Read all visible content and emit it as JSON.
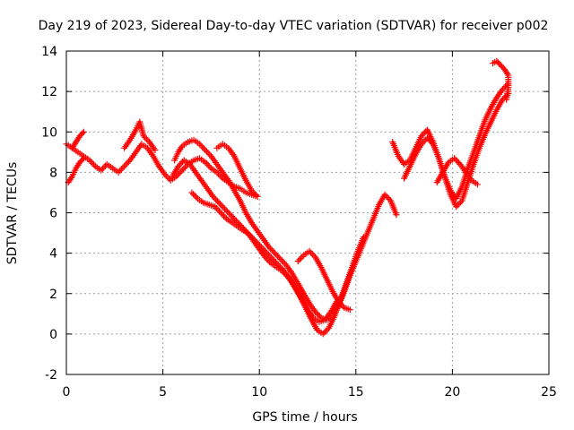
{
  "chart_data": {
    "type": "scatter",
    "title": "Day 219 of 2023, Sidereal Day-to-day VTEC variation (SDTVAR) for receiver p002",
    "xlabel": "GPS time / hours",
    "ylabel": "SDTVAR / TECUs",
    "xlim": [
      0,
      25
    ],
    "ylim": [
      -2,
      14
    ],
    "xticks": [
      0,
      5,
      10,
      15,
      20,
      25
    ],
    "yticks": [
      -2,
      0,
      2,
      4,
      6,
      8,
      10,
      12,
      14
    ],
    "grid": true,
    "legend": "none",
    "marker": "plus",
    "color": "#ff0000",
    "series": [
      {
        "x": [
          0.0,
          0.3,
          0.6,
          0.9,
          1.2,
          1.5,
          1.8,
          2.1,
          2.4,
          2.7,
          3.0,
          3.3,
          3.6,
          3.9,
          4.2,
          4.5,
          4.8,
          5.1,
          5.4,
          5.7,
          6.0,
          6.3,
          6.6,
          6.9,
          7.2,
          7.5,
          7.8,
          8.1,
          8.4,
          8.7,
          9.0,
          9.3,
          9.6,
          9.9
        ],
        "y": [
          9.4,
          9.2,
          9.0,
          8.8,
          8.6,
          8.3,
          8.1,
          8.4,
          8.2,
          8.0,
          8.3,
          8.6,
          9.0,
          9.4,
          9.2,
          8.8,
          8.3,
          7.9,
          7.6,
          7.8,
          8.1,
          8.4,
          8.6,
          8.7,
          8.5,
          8.2,
          8.0,
          7.7,
          7.5,
          7.3,
          7.2,
          7.0,
          6.9,
          6.8
        ]
      },
      {
        "x": [
          0.1,
          0.3,
          0.5,
          0.7,
          0.9
        ],
        "y": [
          7.5,
          7.8,
          8.2,
          8.5,
          8.7
        ]
      },
      {
        "x": [
          0.3,
          0.5,
          0.7,
          0.9
        ],
        "y": [
          9.2,
          9.5,
          9.8,
          10.0
        ]
      },
      {
        "x": [
          3.0,
          3.3,
          3.6,
          3.8,
          4.0,
          4.3,
          4.6
        ],
        "y": [
          9.2,
          9.6,
          10.1,
          10.5,
          9.8,
          9.5,
          9.1
        ]
      },
      {
        "x": [
          5.6,
          5.8,
          6.0,
          6.3,
          6.6,
          6.9,
          7.2,
          7.5,
          7.8,
          8.1,
          8.4,
          8.7,
          9.0,
          9.3,
          9.6,
          9.9,
          10.2,
          10.5,
          10.8,
          11.1,
          11.4,
          11.7,
          12.0,
          12.3,
          12.6,
          12.9,
          13.2,
          13.5,
          13.8,
          14.1,
          14.4,
          14.7,
          15.0,
          15.3,
          15.6,
          15.9,
          16.2,
          16.5,
          16.8,
          17.1
        ],
        "y": [
          8.6,
          9.0,
          9.3,
          9.5,
          9.6,
          9.4,
          9.1,
          8.8,
          8.4,
          8.0,
          7.6,
          7.1,
          6.6,
          6.0,
          5.5,
          5.1,
          4.7,
          4.3,
          4.0,
          3.7,
          3.4,
          3.0,
          2.5,
          2.0,
          1.5,
          1.1,
          0.8,
          0.7,
          0.9,
          1.4,
          2.1,
          2.9,
          3.6,
          4.3,
          5.0,
          5.7,
          6.4,
          6.9,
          6.6,
          5.9
        ]
      },
      {
        "x": [
          5.5,
          5.8,
          6.1,
          6.4,
          6.7,
          7.0,
          7.3,
          7.6,
          7.9,
          8.2,
          8.5,
          8.8,
          9.1,
          9.4,
          9.7,
          10.0,
          10.3,
          10.6,
          10.9,
          11.2,
          11.5,
          11.8,
          12.1,
          12.4,
          12.7,
          13.0,
          13.3,
          13.6,
          13.9,
          14.2,
          14.5,
          14.8,
          15.1,
          15.4
        ],
        "y": [
          7.8,
          8.3,
          8.6,
          8.4,
          8.0,
          7.6,
          7.2,
          6.8,
          6.5,
          6.2,
          5.9,
          5.6,
          5.3,
          5.0,
          4.6,
          4.2,
          3.8,
          3.5,
          3.3,
          3.1,
          2.8,
          2.4,
          1.9,
          1.3,
          0.7,
          0.2,
          0.0,
          0.3,
          0.9,
          1.7,
          2.5,
          3.3,
          4.1,
          4.8
        ]
      },
      {
        "x": [
          6.5,
          6.8,
          7.1,
          7.4,
          7.7,
          8.0,
          8.3,
          8.6,
          8.9,
          9.2,
          9.5,
          9.8,
          10.1,
          10.4,
          10.7,
          11.0,
          11.3,
          11.6,
          11.9,
          12.2,
          12.5,
          12.8,
          13.1,
          13.4,
          13.7,
          14.0
        ],
        "y": [
          7.0,
          6.7,
          6.5,
          6.4,
          6.3,
          6.0,
          5.7,
          5.5,
          5.3,
          5.1,
          4.9,
          4.6,
          4.3,
          4.0,
          3.7,
          3.4,
          3.1,
          2.7,
          2.2,
          1.7,
          1.2,
          0.8,
          0.6,
          0.7,
          1.1,
          1.6
        ]
      },
      {
        "x": [
          7.8,
          8.1,
          8.4,
          8.7,
          9.0,
          9.3,
          9.6,
          9.9
        ],
        "y": [
          9.2,
          9.4,
          9.2,
          8.8,
          8.2,
          7.6,
          7.1,
          6.8
        ]
      },
      {
        "x": [
          12.0,
          12.3,
          12.6,
          12.9,
          13.2,
          13.5,
          13.8,
          14.1,
          14.4,
          14.7
        ],
        "y": [
          3.6,
          3.9,
          4.1,
          3.8,
          3.3,
          2.7,
          2.1,
          1.6,
          1.3,
          1.2
        ]
      },
      {
        "x": [
          16.9,
          17.2,
          17.5,
          17.8,
          18.1,
          18.4,
          18.7,
          19.0,
          19.3,
          19.6,
          19.9,
          20.2,
          20.5,
          20.8,
          21.1,
          21.4,
          21.7,
          22.0,
          22.3,
          22.6,
          22.9
        ],
        "y": [
          9.5,
          8.8,
          8.4,
          8.6,
          9.2,
          9.8,
          10.1,
          9.5,
          8.7,
          7.8,
          7.1,
          6.7,
          7.3,
          8.2,
          9.0,
          9.8,
          10.6,
          11.2,
          11.7,
          12.1,
          12.4
        ]
      },
      {
        "x": [
          17.5,
          17.8,
          18.1,
          18.4,
          18.7,
          19.0,
          19.3,
          19.6,
          19.9,
          20.2,
          20.5,
          20.8,
          21.1,
          21.4,
          21.7,
          22.0,
          22.3,
          22.6,
          22.9
        ],
        "y": [
          7.7,
          8.3,
          8.9,
          9.4,
          9.7,
          9.4,
          8.7,
          7.8,
          6.9,
          6.3,
          6.6,
          7.5,
          8.4,
          9.2,
          9.9,
          10.5,
          11.1,
          11.6,
          11.9
        ]
      },
      {
        "x": [
          19.2,
          19.5,
          19.8,
          20.1,
          20.4,
          20.7,
          21.0,
          21.3
        ],
        "y": [
          7.5,
          8.0,
          8.5,
          8.7,
          8.4,
          8.0,
          7.6,
          7.4
        ]
      },
      {
        "x": [
          22.1,
          22.3,
          22.5,
          22.7,
          22.9,
          22.9,
          22.8
        ],
        "y": [
          13.4,
          13.5,
          13.3,
          13.1,
          12.8,
          12.2,
          11.6
        ]
      }
    ]
  }
}
